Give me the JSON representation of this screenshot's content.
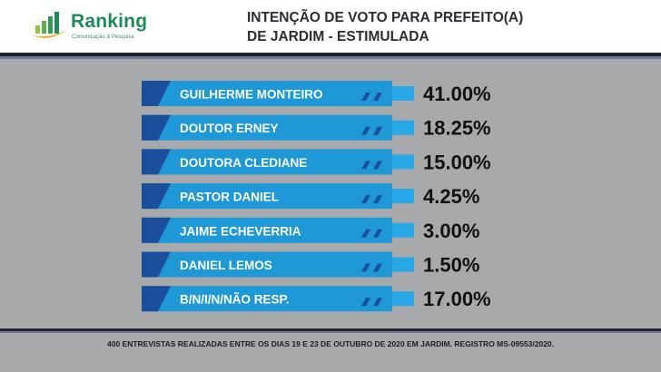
{
  "brand": {
    "name": "Ranking",
    "tagline": "Comunicação & Pesquisa",
    "color": "#1f8a58"
  },
  "title": {
    "line1": "INTENÇÃO DE VOTO PARA PREFEITO(A)",
    "line2": "DE JARDIM - ESTIMULADA"
  },
  "chart_data": {
    "type": "bar",
    "categories": [
      "GUILHERME MONTEIRO",
      "DOUTOR ERNEY",
      "DOUTORA CLEDIANE",
      "PASTOR DANIEL",
      "JAIME ECHEVERRIA",
      "DANIEL LEMOS",
      "B/N/I/N/NÃO RESP."
    ],
    "values": [
      41.0,
      18.25,
      15.0,
      4.25,
      3.0,
      1.5,
      17.0
    ],
    "value_labels": [
      "41.00%",
      "18.25%",
      "15.00%",
      "4.25%",
      "3.00%",
      "1.50%",
      "17.00%"
    ],
    "bar_color": "#1e98d6",
    "accent_color": "#1b4f9c"
  },
  "footnote": "400 ENTREVISTAS REALIZADAS ENTRE OS DIAS 19 E 23 DE OUTUBRO DE 2020 EM JARDIM. REGISTRO MS-09553/2020."
}
